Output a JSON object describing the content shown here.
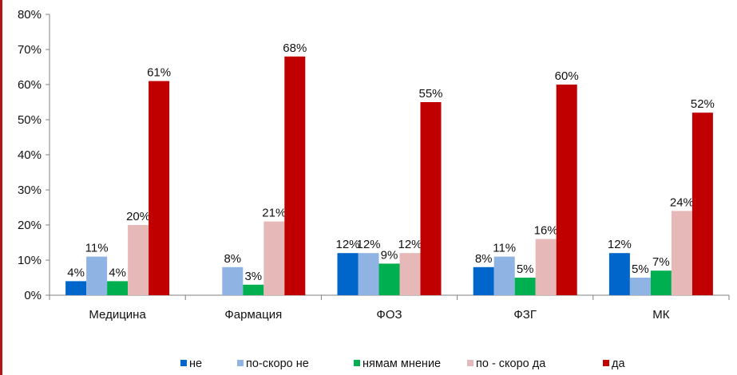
{
  "chart_data": {
    "type": "bar",
    "title": "",
    "xlabel": "",
    "ylabel": "",
    "ylim": [
      0,
      80
    ],
    "y_ticks": [
      "0%",
      "10%",
      "20%",
      "30%",
      "40%",
      "50%",
      "60%",
      "70%",
      "80%"
    ],
    "grid": false,
    "legend_position": "bottom",
    "categories": [
      "Медицина",
      "Фармация",
      "ФОЗ",
      "ФЗГ",
      "МК"
    ],
    "series": [
      {
        "name": "не",
        "color": "#0066cc",
        "values": [
          4,
          null,
          12,
          8,
          12
        ],
        "labels": [
          "4%",
          "",
          "12%",
          "8%",
          "12%"
        ]
      },
      {
        "name": "по-скоро не",
        "color": "#8fb4e3",
        "values": [
          11,
          8,
          12,
          11,
          5
        ],
        "labels": [
          "11%",
          "8%",
          "12%",
          "11%",
          "5%"
        ]
      },
      {
        "name": "нямам мнение",
        "color": "#00b050",
        "values": [
          4,
          3,
          9,
          5,
          7
        ],
        "labels": [
          "4%",
          "3%",
          "9%",
          "5%",
          "7%"
        ]
      },
      {
        "name": "по - скоро да",
        "color": "#e6b9b8",
        "values": [
          20,
          21,
          12,
          16,
          24
        ],
        "labels": [
          "20%",
          "21%",
          "12%",
          "16%",
          "24%"
        ]
      },
      {
        "name": "да",
        "color": "#c00000",
        "values": [
          61,
          68,
          55,
          60,
          52
        ],
        "labels": [
          "61%",
          "68%",
          "55%",
          "60%",
          "52%"
        ]
      }
    ]
  }
}
